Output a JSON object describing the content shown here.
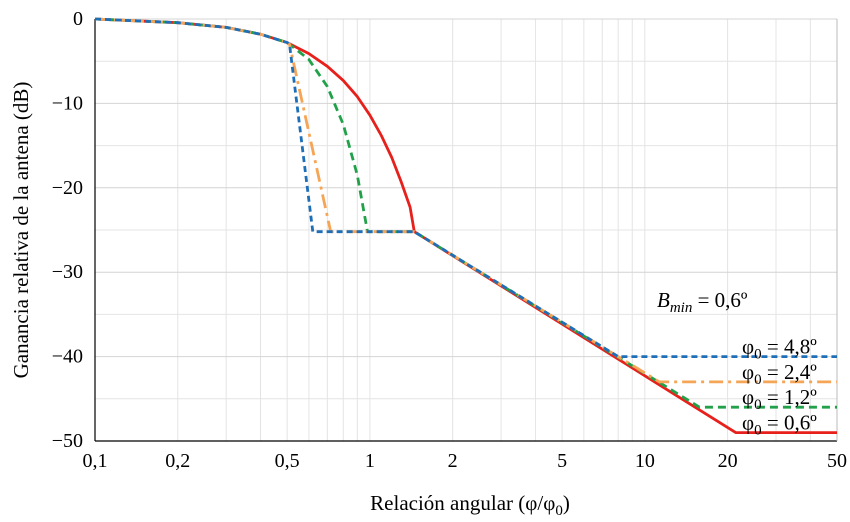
{
  "chart_data": {
    "type": "line",
    "title": "",
    "xlabel": "Relación angular (φ/φ",
    "xlabel_sub": "0",
    "xlabel_end": ")",
    "ylabel": "Ganancia relativa de la antena (dB)",
    "xscale": "log",
    "xlim": [
      0.1,
      50
    ],
    "ylim": [
      -50,
      0
    ],
    "grid": true,
    "x_ticks": [
      0.1,
      0.2,
      0.5,
      1,
      2,
      5,
      10,
      20,
      50
    ],
    "x_tick_labels": [
      "0,1",
      "0,2",
      "0,5",
      "1",
      "2",
      "5",
      "10",
      "20",
      "50"
    ],
    "y_ticks": [
      0,
      -10,
      -20,
      -30,
      -40,
      -50
    ],
    "y_tick_labels": [
      "0",
      "−10",
      "−20",
      "−30",
      "−40",
      "−50"
    ],
    "annotation": {
      "base": "B",
      "sub": "min",
      "rest": " = 0,6º"
    },
    "series": [
      {
        "label_base": "φ",
        "label_sub": "0",
        "label_rest": " = 4,8º",
        "color": "#1f6fb8",
        "dash": "6,4",
        "phi_ratio": 0.62,
        "floor": -40,
        "x": [
          0.1,
          0.2,
          0.3,
          0.4,
          0.5,
          0.51,
          0.62,
          1.45,
          8.0,
          50
        ],
        "y": [
          0,
          -0.44,
          -1.0,
          -1.8,
          -2.8,
          -3.0,
          -25.2,
          -25.2,
          -40,
          -40
        ]
      },
      {
        "label_base": "φ",
        "label_sub": "0",
        "label_rest": " = 2,4º",
        "color": "#f5a556",
        "dash": "14,5,3,5",
        "phi_ratio": 0.72,
        "floor": -43,
        "x": [
          0.1,
          0.2,
          0.3,
          0.4,
          0.5,
          0.51,
          0.72,
          0.72,
          1.45,
          11.3,
          50
        ],
        "y": [
          0,
          -0.44,
          -1.0,
          -1.8,
          -2.8,
          -3.0,
          -25.2,
          -25.2,
          -25.2,
          -43,
          -43
        ]
      },
      {
        "label_base": "φ",
        "label_sub": "0",
        "label_rest": " = 1,2º",
        "color": "#22a14a",
        "dash": "8,5",
        "phi_ratio": 0.98,
        "floor": -46,
        "x": [
          0.1,
          0.2,
          0.3,
          0.4,
          0.5,
          0.51,
          0.6,
          0.7,
          0.8,
          0.9,
          0.98,
          1.45,
          15.8,
          50
        ],
        "y": [
          0,
          -0.44,
          -1.0,
          -1.8,
          -2.8,
          -3.0,
          -4.8,
          -8.0,
          -12.5,
          -18.5,
          -25.2,
          -25.2,
          -46,
          -46
        ]
      },
      {
        "label_base": "φ",
        "label_sub": "0",
        "label_rest": " = 0,6º",
        "color": "#e8201c",
        "dash": "",
        "phi_ratio": 1.45,
        "floor": -49,
        "x": [
          0.1,
          0.2,
          0.3,
          0.4,
          0.5,
          0.6,
          0.7,
          0.8,
          0.9,
          1.0,
          1.1,
          1.2,
          1.3,
          1.4,
          1.45,
          21.4,
          50
        ],
        "y": [
          0,
          -0.44,
          -1.0,
          -1.8,
          -2.8,
          -4.1,
          -5.6,
          -7.3,
          -9.2,
          -11.4,
          -13.8,
          -16.4,
          -19.3,
          -22.3,
          -25.2,
          -49,
          -49
        ]
      }
    ]
  }
}
